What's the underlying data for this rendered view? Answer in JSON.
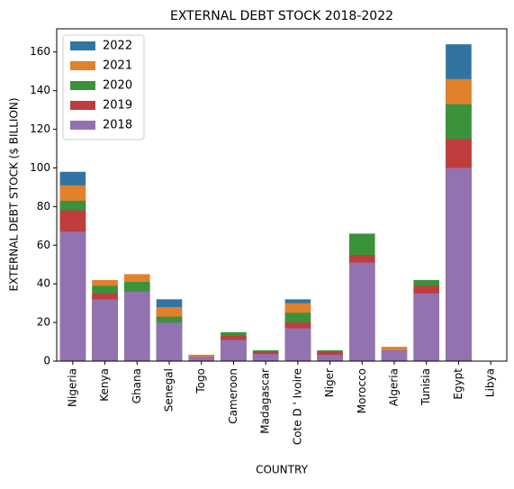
{
  "chart_data": {
    "type": "bar",
    "overlap": true,
    "title": "EXTERNAL DEBT STOCK 2018-2022",
    "x_label": "COUNTRY",
    "y_label": "EXTERNAL DEBT STOCK ($ BILLION)",
    "categories": [
      "Nigeria",
      "Kenya",
      "Ghana",
      "Senegal",
      "Togo",
      "Cameroon",
      "Madagascar",
      "Cote D ' Ivoire",
      "Niger",
      "Morocco",
      "Algeria",
      "Tunisia",
      "Egypt",
      "Libya"
    ],
    "series": [
      {
        "name": "2022",
        "color": "#3274a1",
        "values": [
          98,
          null,
          null,
          32,
          null,
          null,
          null,
          32,
          null,
          null,
          null,
          null,
          164,
          null
        ]
      },
      {
        "name": "2021",
        "color": "#e1812c",
        "values": [
          91,
          42,
          45,
          28,
          3.3,
          null,
          null,
          30,
          null,
          null,
          7.4,
          null,
          146,
          null
        ]
      },
      {
        "name": "2020",
        "color": "#3a923a",
        "values": [
          83,
          39,
          41,
          23,
          null,
          15,
          5.6,
          25,
          5.6,
          66,
          null,
          42,
          133,
          null
        ]
      },
      {
        "name": "2019",
        "color": "#c03d3e",
        "values": [
          78,
          35,
          null,
          null,
          null,
          13,
          4.7,
          20,
          4.7,
          55,
          null,
          39,
          115,
          null
        ]
      },
      {
        "name": "2018",
        "color": "#9372b2",
        "values": [
          67,
          32,
          36,
          20,
          2.3,
          11,
          3.7,
          17,
          3.3,
          51,
          5.6,
          35,
          100,
          null
        ]
      }
    ],
    "ylim": [
      0,
      172
    ],
    "yticks": [
      0,
      20,
      40,
      60,
      80,
      100,
      120,
      140,
      160
    ],
    "legend": "upper left"
  }
}
